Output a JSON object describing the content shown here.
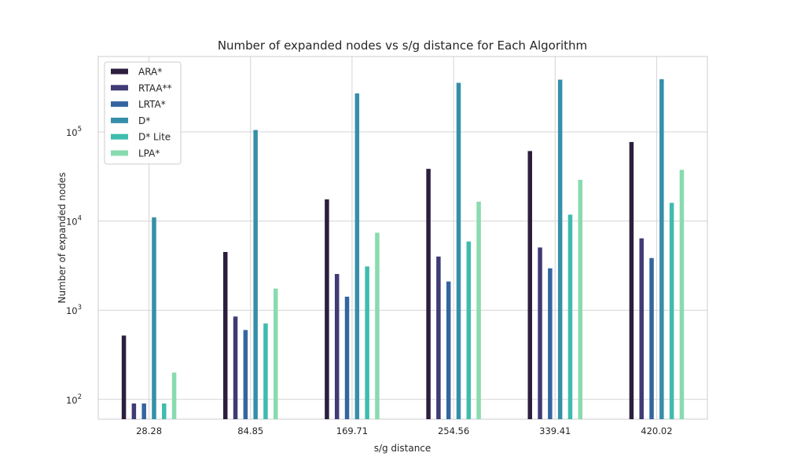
{
  "chart_data": {
    "type": "bar",
    "title": "Number of expanded nodes vs s/g distance for Each Algorithm",
    "xlabel": "s/g distance",
    "ylabel": "Number of expanded nodes",
    "yscale": "log",
    "ylim": [
      60,
      700000
    ],
    "grid": true,
    "legend_position": "top-left",
    "categories": [
      "28.28",
      "84.85",
      "169.71",
      "254.56",
      "339.41",
      "420.02"
    ],
    "yticks": [
      {
        "base": "10",
        "exp": "2",
        "value": 100
      },
      {
        "base": "10",
        "exp": "3",
        "value": 1000
      },
      {
        "base": "10",
        "exp": "4",
        "value": 10000
      },
      {
        "base": "10",
        "exp": "5",
        "value": 100000
      }
    ],
    "series": [
      {
        "name": "ARA*",
        "color": "#2d1e3e",
        "values": [
          520,
          4500,
          17500,
          38500,
          61000,
          77000
        ]
      },
      {
        "name": "RTAA**",
        "color": "#403a75",
        "values": [
          90,
          850,
          2550,
          4000,
          5050,
          6400
        ]
      },
      {
        "name": "LRTA*",
        "color": "#3465a0",
        "values": [
          90,
          600,
          1420,
          2100,
          2950,
          3850
        ]
      },
      {
        "name": "D*",
        "color": "#368faa",
        "values": [
          11000,
          105000,
          270000,
          355000,
          385000,
          390000
        ]
      },
      {
        "name": "D* Lite",
        "color": "#3fbcae",
        "values": [
          90,
          710,
          3100,
          5900,
          11800,
          16000
        ]
      },
      {
        "name": "LPA*",
        "color": "#88dbae",
        "values": [
          200,
          1750,
          7400,
          16500,
          29000,
          37500
        ]
      }
    ]
  }
}
